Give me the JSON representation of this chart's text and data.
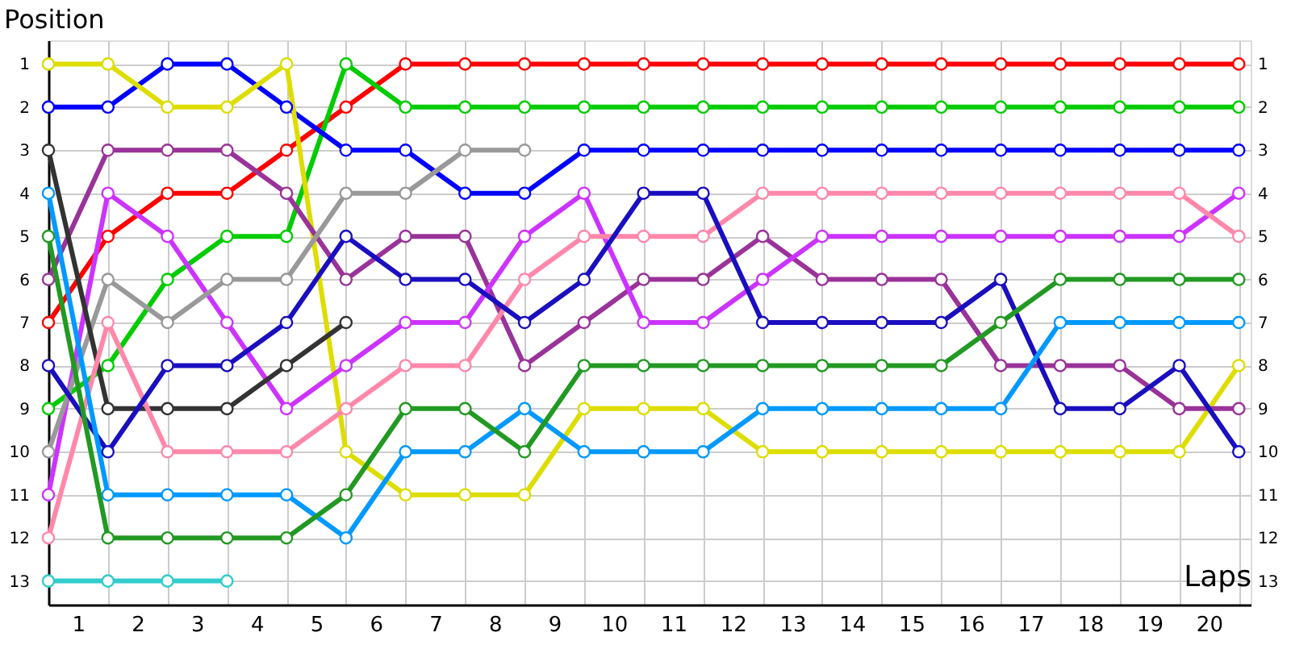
{
  "chart_data": {
    "type": "line",
    "xlabel": "Laps",
    "ylabel": "Position",
    "x": [
      0,
      1,
      2,
      3,
      4,
      5,
      6,
      7,
      8,
      9,
      10,
      11,
      12,
      13,
      14,
      15,
      16,
      17,
      18,
      19,
      20
    ],
    "series": [
      {
        "color": "#ff0000",
        "values": [
          7,
          5,
          4,
          4,
          3,
          2,
          1,
          1,
          1,
          1,
          1,
          1,
          1,
          1,
          1,
          1,
          1,
          1,
          1,
          1,
          1
        ]
      },
      {
        "color": "#00cc00",
        "values": [
          9,
          8,
          6,
          5,
          5,
          1,
          2,
          2,
          2,
          2,
          2,
          2,
          2,
          2,
          2,
          2,
          2,
          2,
          2,
          2,
          2
        ]
      },
      {
        "color": "#0000ff",
        "values": [
          2,
          2,
          1,
          1,
          2,
          3,
          3,
          4,
          4,
          3,
          3,
          3,
          3,
          3,
          3,
          3,
          3,
          3,
          3,
          3,
          3
        ]
      },
      {
        "color": "#dddd00",
        "values": [
          1,
          1,
          2,
          2,
          1,
          10,
          11,
          11,
          11,
          9,
          9,
          9,
          10,
          10,
          10,
          10,
          10,
          10,
          10,
          10,
          8
        ]
      },
      {
        "color": "#993399",
        "values": [
          6,
          3,
          3,
          3,
          4,
          6,
          5,
          5,
          8,
          7,
          6,
          6,
          5,
          6,
          6,
          6,
          8,
          8,
          8,
          9,
          9
        ]
      },
      {
        "color": "#cc33ff",
        "values": [
          11,
          4,
          5,
          7,
          9,
          8,
          7,
          7,
          5,
          4,
          7,
          7,
          6,
          5,
          5,
          5,
          5,
          5,
          5,
          5,
          4
        ]
      },
      {
        "color": "#999999",
        "values": [
          10,
          6,
          7,
          6,
          6,
          4,
          4,
          3,
          3,
          null,
          null,
          null,
          null,
          null,
          null,
          null,
          null,
          null,
          null,
          null,
          null
        ]
      },
      {
        "color": "#333333",
        "values": [
          3,
          9,
          9,
          9,
          8,
          7,
          null,
          null,
          null,
          null,
          null,
          null,
          null,
          null,
          null,
          null,
          null,
          null,
          null,
          null,
          null
        ]
      },
      {
        "color": "#ff88aa",
        "values": [
          12,
          7,
          10,
          10,
          10,
          9,
          8,
          8,
          6,
          5,
          5,
          5,
          4,
          4,
          4,
          4,
          4,
          4,
          4,
          4,
          5
        ]
      },
      {
        "color": "#1a0fbf",
        "values": [
          8,
          10,
          8,
          8,
          7,
          5,
          6,
          6,
          7,
          6,
          4,
          4,
          7,
          7,
          7,
          7,
          6,
          9,
          9,
          8,
          10
        ]
      },
      {
        "color": "#0099ff",
        "values": [
          4,
          11,
          11,
          11,
          11,
          12,
          10,
          10,
          9,
          10,
          10,
          10,
          9,
          9,
          9,
          9,
          9,
          7,
          7,
          7,
          7
        ]
      },
      {
        "color": "#229922",
        "values": [
          5,
          12,
          12,
          12,
          12,
          11,
          9,
          9,
          10,
          8,
          8,
          8,
          8,
          8,
          8,
          8,
          7,
          6,
          6,
          6,
          6
        ]
      },
      {
        "color": "#33cccc",
        "values": [
          13,
          13,
          13,
          13,
          null,
          null,
          null,
          null,
          null,
          null,
          null,
          null,
          null,
          null,
          null,
          null,
          null,
          null,
          null,
          null,
          null
        ]
      }
    ],
    "xlim": [
      0,
      20.2
    ],
    "xticks": [
      {
        "value": 0,
        "label": null
      },
      {
        "value": 1,
        "label": null
      },
      {
        "value": 2,
        "label": null
      },
      {
        "value": 3,
        "label": null
      },
      {
        "value": 4,
        "label": null
      },
      {
        "value": 5,
        "label": null
      },
      {
        "value": 6,
        "label": null
      },
      {
        "value": 7,
        "label": null
      },
      {
        "value": 8,
        "label": null
      },
      {
        "value": 9,
        "label": null
      },
      {
        "value": 10,
        "label": null
      },
      {
        "value": 11,
        "label": null
      },
      {
        "value": 12,
        "label": null
      },
      {
        "value": 13,
        "label": null
      },
      {
        "value": 14,
        "label": null
      },
      {
        "value": 15,
        "label": null
      },
      {
        "value": 16,
        "label": null
      },
      {
        "value": 17,
        "label": null
      },
      {
        "value": 18,
        "label": null
      },
      {
        "value": 19,
        "label": null
      },
      {
        "value": 20,
        "label": null
      },
      {
        "value": 0.5,
        "label": "1"
      },
      {
        "value": 1.5,
        "label": "2"
      },
      {
        "value": 2.5,
        "label": "3"
      },
      {
        "value": 3.5,
        "label": "4"
      },
      {
        "value": 4.5,
        "label": "5"
      },
      {
        "value": 5.5,
        "label": "6"
      },
      {
        "value": 6.5,
        "label": "7"
      },
      {
        "value": 7.5,
        "label": "8"
      },
      {
        "value": 8.5,
        "label": "9"
      },
      {
        "value": 9.5,
        "label": "10"
      },
      {
        "value": 10.5,
        "label": "11"
      },
      {
        "value": 11.5,
        "label": "12"
      },
      {
        "value": 12.5,
        "label": "13"
      },
      {
        "value": 13.5,
        "label": "14"
      },
      {
        "value": 14.5,
        "label": "15"
      },
      {
        "value": 15.5,
        "label": "16"
      },
      {
        "value": 16.5,
        "label": "17"
      },
      {
        "value": 17.5,
        "label": "18"
      },
      {
        "value": 18.5,
        "label": "19"
      },
      {
        "value": 19.5,
        "label": "20"
      }
    ],
    "ylim": [
      13.55,
      0.45
    ],
    "yticks": [
      1,
      2,
      3,
      4,
      5,
      6,
      7,
      8,
      9,
      10,
      11,
      12,
      13
    ],
    "y2lim": [
      13.55,
      0.45
    ],
    "y2ticks": [
      1,
      2,
      3,
      4,
      5,
      6,
      7,
      8,
      9,
      10,
      11,
      12,
      13
    ],
    "grid": true,
    "marker": "circle",
    "line_style": "solid"
  }
}
